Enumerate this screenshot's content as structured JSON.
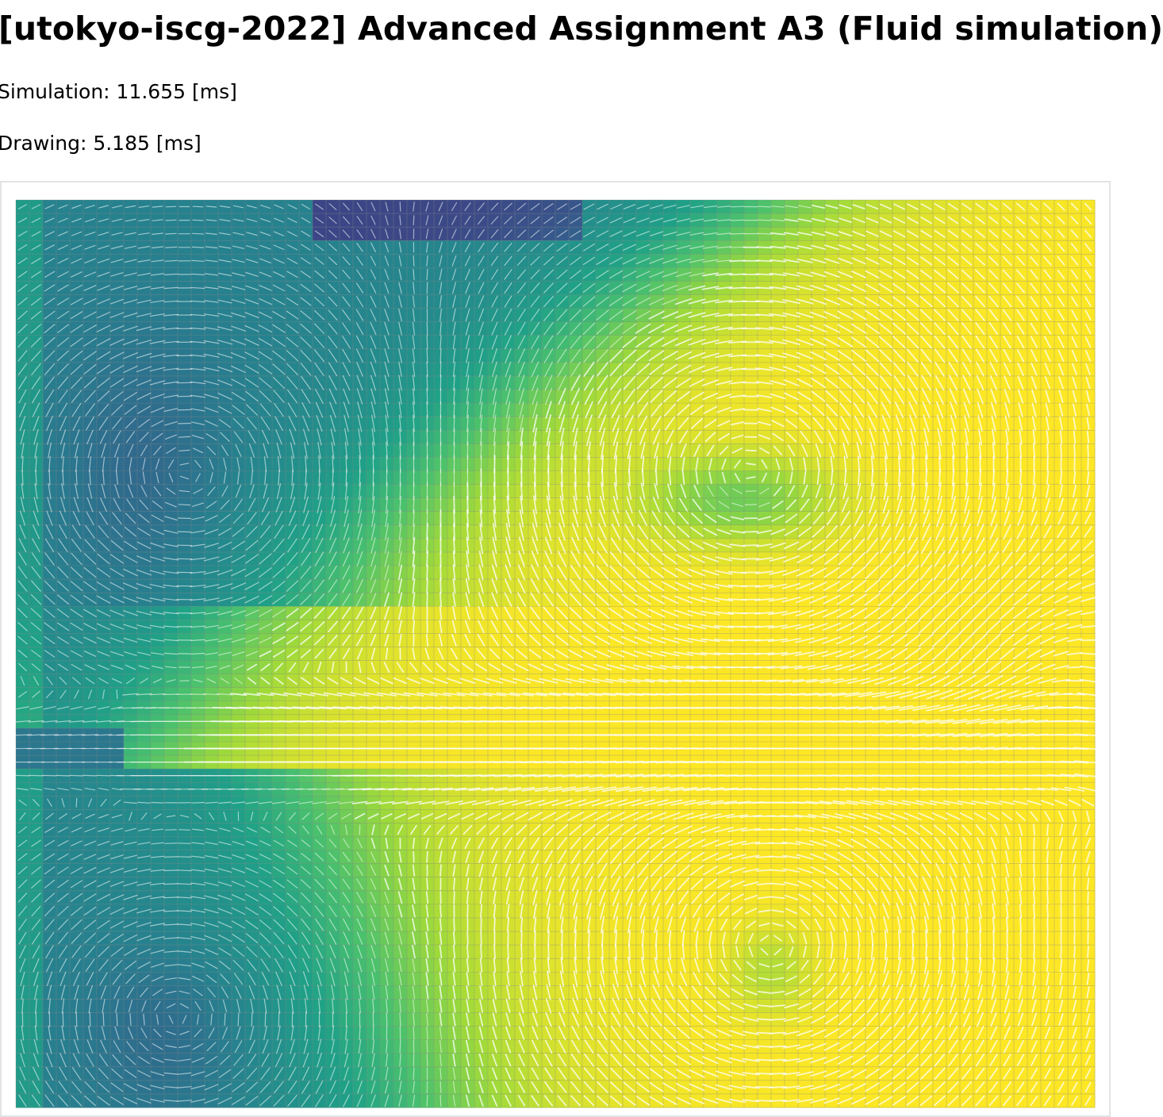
{
  "header": {
    "title": "[utokyo-iscg-2022] Advanced Assignment A3 (Fluid simulation)"
  },
  "stats": {
    "simulation": "Simulation: 11.655 [ms]",
    "drawing": "Drawing: 5.185 [ms]"
  },
  "simulation_view": {
    "colormap": "viridis",
    "grid_lines": true,
    "velocity_arrows_color": "#ffffff",
    "colors": {
      "low": "#3b4d8a",
      "mid": "#2a9d8a",
      "high": "#fde725",
      "grid": "#777777"
    }
  }
}
